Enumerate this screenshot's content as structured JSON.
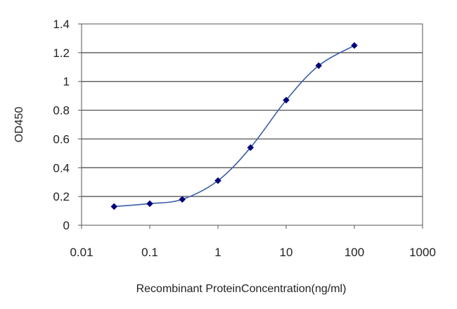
{
  "chart_data": {
    "type": "line",
    "title": "",
    "xlabel": "Recombinant ProteinConcentration(ng/ml)",
    "ylabel": "OD450",
    "x_scale": "log",
    "xlim": [
      0.01,
      1000
    ],
    "ylim": [
      0,
      1.4
    ],
    "x_ticks": [
      0.01,
      0.1,
      1,
      10,
      100,
      1000
    ],
    "x_tick_labels": [
      "0.01",
      "0.1",
      "1",
      "10",
      "100",
      "1000"
    ],
    "y_ticks": [
      0,
      0.2,
      0.4,
      0.6,
      0.8,
      1,
      1.2,
      1.4
    ],
    "y_tick_labels": [
      "0",
      "0.2",
      "0.4",
      "0.6",
      "0.8",
      "1",
      "1.2",
      "1.4"
    ],
    "grid": "horizontal",
    "legend": "none",
    "series": [
      {
        "x": [
          0.03,
          0.1,
          0.3,
          1,
          3,
          10,
          30,
          100
        ],
        "y": [
          0.13,
          0.15,
          0.18,
          0.31,
          0.54,
          0.87,
          1.11,
          1.25
        ],
        "color": "#00007a",
        "line_color": "#3b5fa8",
        "marker": "diamond"
      }
    ]
  }
}
